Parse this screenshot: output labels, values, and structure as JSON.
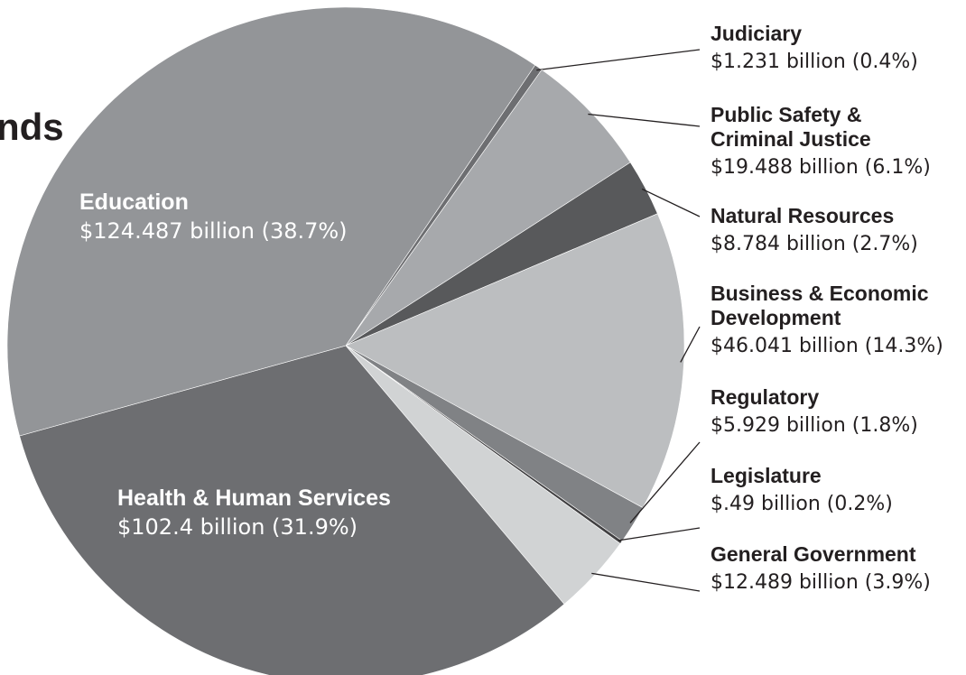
{
  "chart_data": {
    "type": "pie",
    "title": "nds",
    "categories": [
      "Judiciary",
      "Public Safety &\nCriminal Justice",
      "Natural Resources",
      "Business & Economic\nDevelopment",
      "Regulatory",
      "Legislature",
      "General Government",
      "Health & Human Services",
      "Education"
    ],
    "values": [
      1.231,
      19.488,
      8.784,
      46.041,
      5.929,
      0.49,
      12.489,
      102.4,
      124.487
    ],
    "value_labels": [
      "$1.231 billion (0.4%)",
      "$19.488 billion (6.1%)",
      "$8.784 billion (2.7%)",
      "$46.041 billion (14.3%)",
      "$5.929 billion (1.8%)",
      "$.49 billion (0.2%)",
      "$12.489 billion (3.9%)",
      "$102.4 billion (31.9%)",
      "$124.487 billion (38.7%)"
    ],
    "colors": [
      "#6d6e71",
      "#a7a9ac",
      "#58595b",
      "#bcbec0",
      "#808285",
      "#414042",
      "#d1d3d4",
      "#6d6e71",
      "#939598"
    ]
  }
}
